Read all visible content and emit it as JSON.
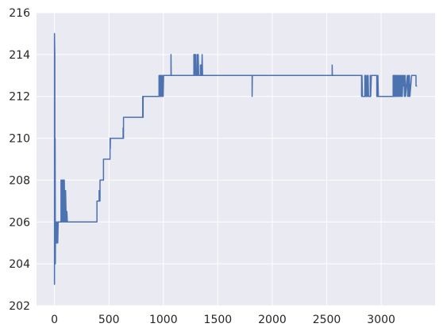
{
  "chart_data": {
    "type": "line",
    "title": "",
    "xlabel": "",
    "ylabel": "",
    "xlim": [
      -165,
      3495
    ],
    "ylim": [
      202,
      216
    ],
    "grid": true,
    "xticks": [
      0,
      500,
      1000,
      1500,
      2000,
      2500,
      3000
    ],
    "yticks": [
      202,
      204,
      206,
      208,
      210,
      212,
      214,
      216
    ],
    "colors": {
      "background": "#EAEAF2",
      "grid": "#FFFFFF",
      "line": "#4C72B0"
    },
    "series": [
      {
        "name": "",
        "points": [
          [
            0,
            203
          ],
          [
            0,
            215
          ],
          [
            3,
            214
          ],
          [
            4,
            206
          ],
          [
            6,
            210
          ],
          [
            8,
            204
          ],
          [
            10,
            206
          ],
          [
            14,
            205
          ],
          [
            18,
            206
          ],
          [
            22,
            205
          ],
          [
            26,
            206
          ],
          [
            30,
            205
          ],
          [
            34,
            206
          ],
          [
            40,
            206
          ],
          [
            40,
            206
          ],
          [
            60,
            206
          ],
          [
            60,
            208
          ],
          [
            66,
            206
          ],
          [
            66,
            208
          ],
          [
            72,
            206
          ],
          [
            72,
            208
          ],
          [
            78,
            206
          ],
          [
            78,
            208
          ],
          [
            84,
            206
          ],
          [
            84,
            208
          ],
          [
            90,
            206
          ],
          [
            90,
            208
          ],
          [
            96,
            206
          ],
          [
            96,
            207.5
          ],
          [
            102,
            206
          ],
          [
            102,
            207.5
          ],
          [
            108,
            206
          ],
          [
            108,
            206.5
          ],
          [
            114,
            206
          ],
          [
            114,
            206.5
          ],
          [
            118,
            206
          ],
          [
            390,
            206
          ],
          [
            390,
            207
          ],
          [
            410,
            207
          ],
          [
            410,
            207.5
          ],
          [
            412,
            207
          ],
          [
            418,
            207
          ],
          [
            418,
            208
          ],
          [
            450,
            208
          ],
          [
            450,
            209
          ],
          [
            510,
            209
          ],
          [
            510,
            210
          ],
          [
            512,
            209.5
          ],
          [
            514,
            210
          ],
          [
            630,
            210
          ],
          [
            630,
            210.5
          ],
          [
            632,
            210
          ],
          [
            634,
            210
          ],
          [
            634,
            211
          ],
          [
            810,
            211
          ],
          [
            810,
            212
          ],
          [
            812,
            211
          ],
          [
            814,
            211
          ],
          [
            814,
            212
          ],
          [
            960,
            212
          ],
          [
            960,
            213
          ],
          [
            964,
            212
          ],
          [
            968,
            213
          ],
          [
            972,
            212
          ],
          [
            976,
            213
          ],
          [
            980,
            212
          ],
          [
            984,
            213
          ],
          [
            990,
            212
          ],
          [
            994,
            213
          ],
          [
            998,
            212
          ],
          [
            1002,
            213
          ],
          [
            1070,
            213
          ],
          [
            1070,
            214
          ],
          [
            1072,
            213
          ],
          [
            1280,
            213
          ],
          [
            1280,
            214
          ],
          [
            1284,
            213
          ],
          [
            1288,
            214
          ],
          [
            1292,
            213
          ],
          [
            1296,
            214
          ],
          [
            1300,
            213
          ],
          [
            1310,
            213
          ],
          [
            1310,
            214
          ],
          [
            1314,
            213
          ],
          [
            1320,
            214
          ],
          [
            1324,
            213
          ],
          [
            1340,
            213
          ],
          [
            1340,
            213.5
          ],
          [
            1344,
            213
          ],
          [
            1348,
            213.5
          ],
          [
            1352,
            213
          ],
          [
            1356,
            214
          ],
          [
            1360,
            213
          ],
          [
            1815,
            213
          ],
          [
            1815,
            212
          ],
          [
            1817,
            213
          ],
          [
            2550,
            213
          ],
          [
            2550,
            213.5
          ],
          [
            2552,
            213
          ],
          [
            2820,
            213
          ],
          [
            2820,
            212
          ],
          [
            2824,
            213
          ],
          [
            2828,
            212
          ],
          [
            2850,
            212
          ],
          [
            2850,
            213
          ],
          [
            2854,
            212
          ],
          [
            2858,
            213
          ],
          [
            2862,
            212
          ],
          [
            2870,
            212
          ],
          [
            2870,
            213
          ],
          [
            2874,
            212
          ],
          [
            2880,
            213
          ],
          [
            2884,
            212
          ],
          [
            2900,
            212
          ],
          [
            2900,
            213
          ],
          [
            2904,
            212
          ],
          [
            2910,
            213
          ],
          [
            2960,
            213
          ],
          [
            2960,
            212
          ],
          [
            2970,
            212
          ],
          [
            2970,
            213
          ],
          [
            2974,
            212
          ],
          [
            2990,
            212
          ],
          [
            3110,
            212
          ],
          [
            3110,
            213
          ],
          [
            3114,
            212
          ],
          [
            3118,
            213
          ],
          [
            3122,
            212
          ],
          [
            3126,
            213
          ],
          [
            3130,
            212
          ],
          [
            3134,
            213
          ],
          [
            3138,
            212
          ],
          [
            3142,
            213
          ],
          [
            3146,
            212
          ],
          [
            3150,
            213
          ],
          [
            3154,
            212
          ],
          [
            3160,
            213
          ],
          [
            3164,
            212
          ],
          [
            3170,
            213
          ],
          [
            3174,
            212
          ],
          [
            3180,
            213
          ],
          [
            3184,
            212
          ],
          [
            3190,
            213
          ],
          [
            3194,
            212
          ],
          [
            3200,
            213
          ],
          [
            3204,
            212.5
          ],
          [
            3210,
            213
          ],
          [
            3214,
            212
          ],
          [
            3220,
            213
          ],
          [
            3224,
            212
          ],
          [
            3240,
            213
          ],
          [
            3244,
            212
          ],
          [
            3250,
            213
          ],
          [
            3254,
            212
          ],
          [
            3260,
            213
          ],
          [
            3264,
            212
          ],
          [
            3280,
            213
          ],
          [
            3284,
            213
          ],
          [
            3320,
            213
          ],
          [
            3320,
            212.5
          ],
          [
            3330,
            212.5
          ]
        ]
      }
    ]
  }
}
